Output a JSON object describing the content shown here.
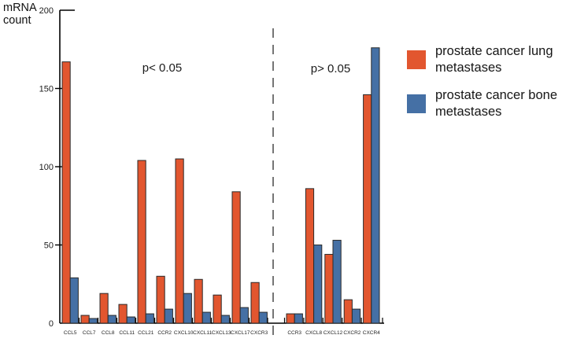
{
  "chart_data": {
    "type": "bar",
    "title": "",
    "ylabel": "mRNA count",
    "xlabel": "",
    "ylim": [
      0,
      200
    ],
    "yticks": [
      0,
      50,
      100,
      150,
      200
    ],
    "grid": false,
    "legend_position": "right",
    "series_names": [
      "prostate cancer lung metastases",
      "prostate cancer bone metastases"
    ],
    "colors": {
      "lung": "#e2562f",
      "bone": "#4570a5",
      "bar_outline": "#2b2b2b",
      "axis": "#000000",
      "divider": "#666666",
      "text": "#1c1c1c"
    },
    "groups": [
      {
        "label": "p< 0.05",
        "categories": [
          "CCL5",
          "CCL7",
          "CCL8",
          "CCL11",
          "CCL21",
          "CCR2",
          "CXCL10",
          "CXCL11",
          "CXCL13",
          "CXCL17",
          "CXCR3"
        ],
        "series": [
          {
            "name": "prostate cancer lung metastases",
            "values": [
              167,
              5,
              19,
              12,
              104,
              30,
              105,
              28,
              18,
              84,
              26
            ]
          },
          {
            "name": "prostate cancer bone metastases",
            "values": [
              29,
              3,
              5,
              4,
              6,
              9,
              19,
              7,
              5,
              10,
              7
            ]
          }
        ]
      },
      {
        "label": "p> 0.05",
        "categories": [
          "CCR3",
          "CXCL8",
          "CXCL12",
          "CXCR2",
          "CXCR4"
        ],
        "series": [
          {
            "name": "prostate cancer lung metastases",
            "values": [
              6,
              86,
              44,
              15,
              146
            ]
          },
          {
            "name": "prostate cancer bone metastases",
            "values": [
              6,
              50,
              53,
              9,
              176
            ]
          }
        ]
      }
    ]
  }
}
